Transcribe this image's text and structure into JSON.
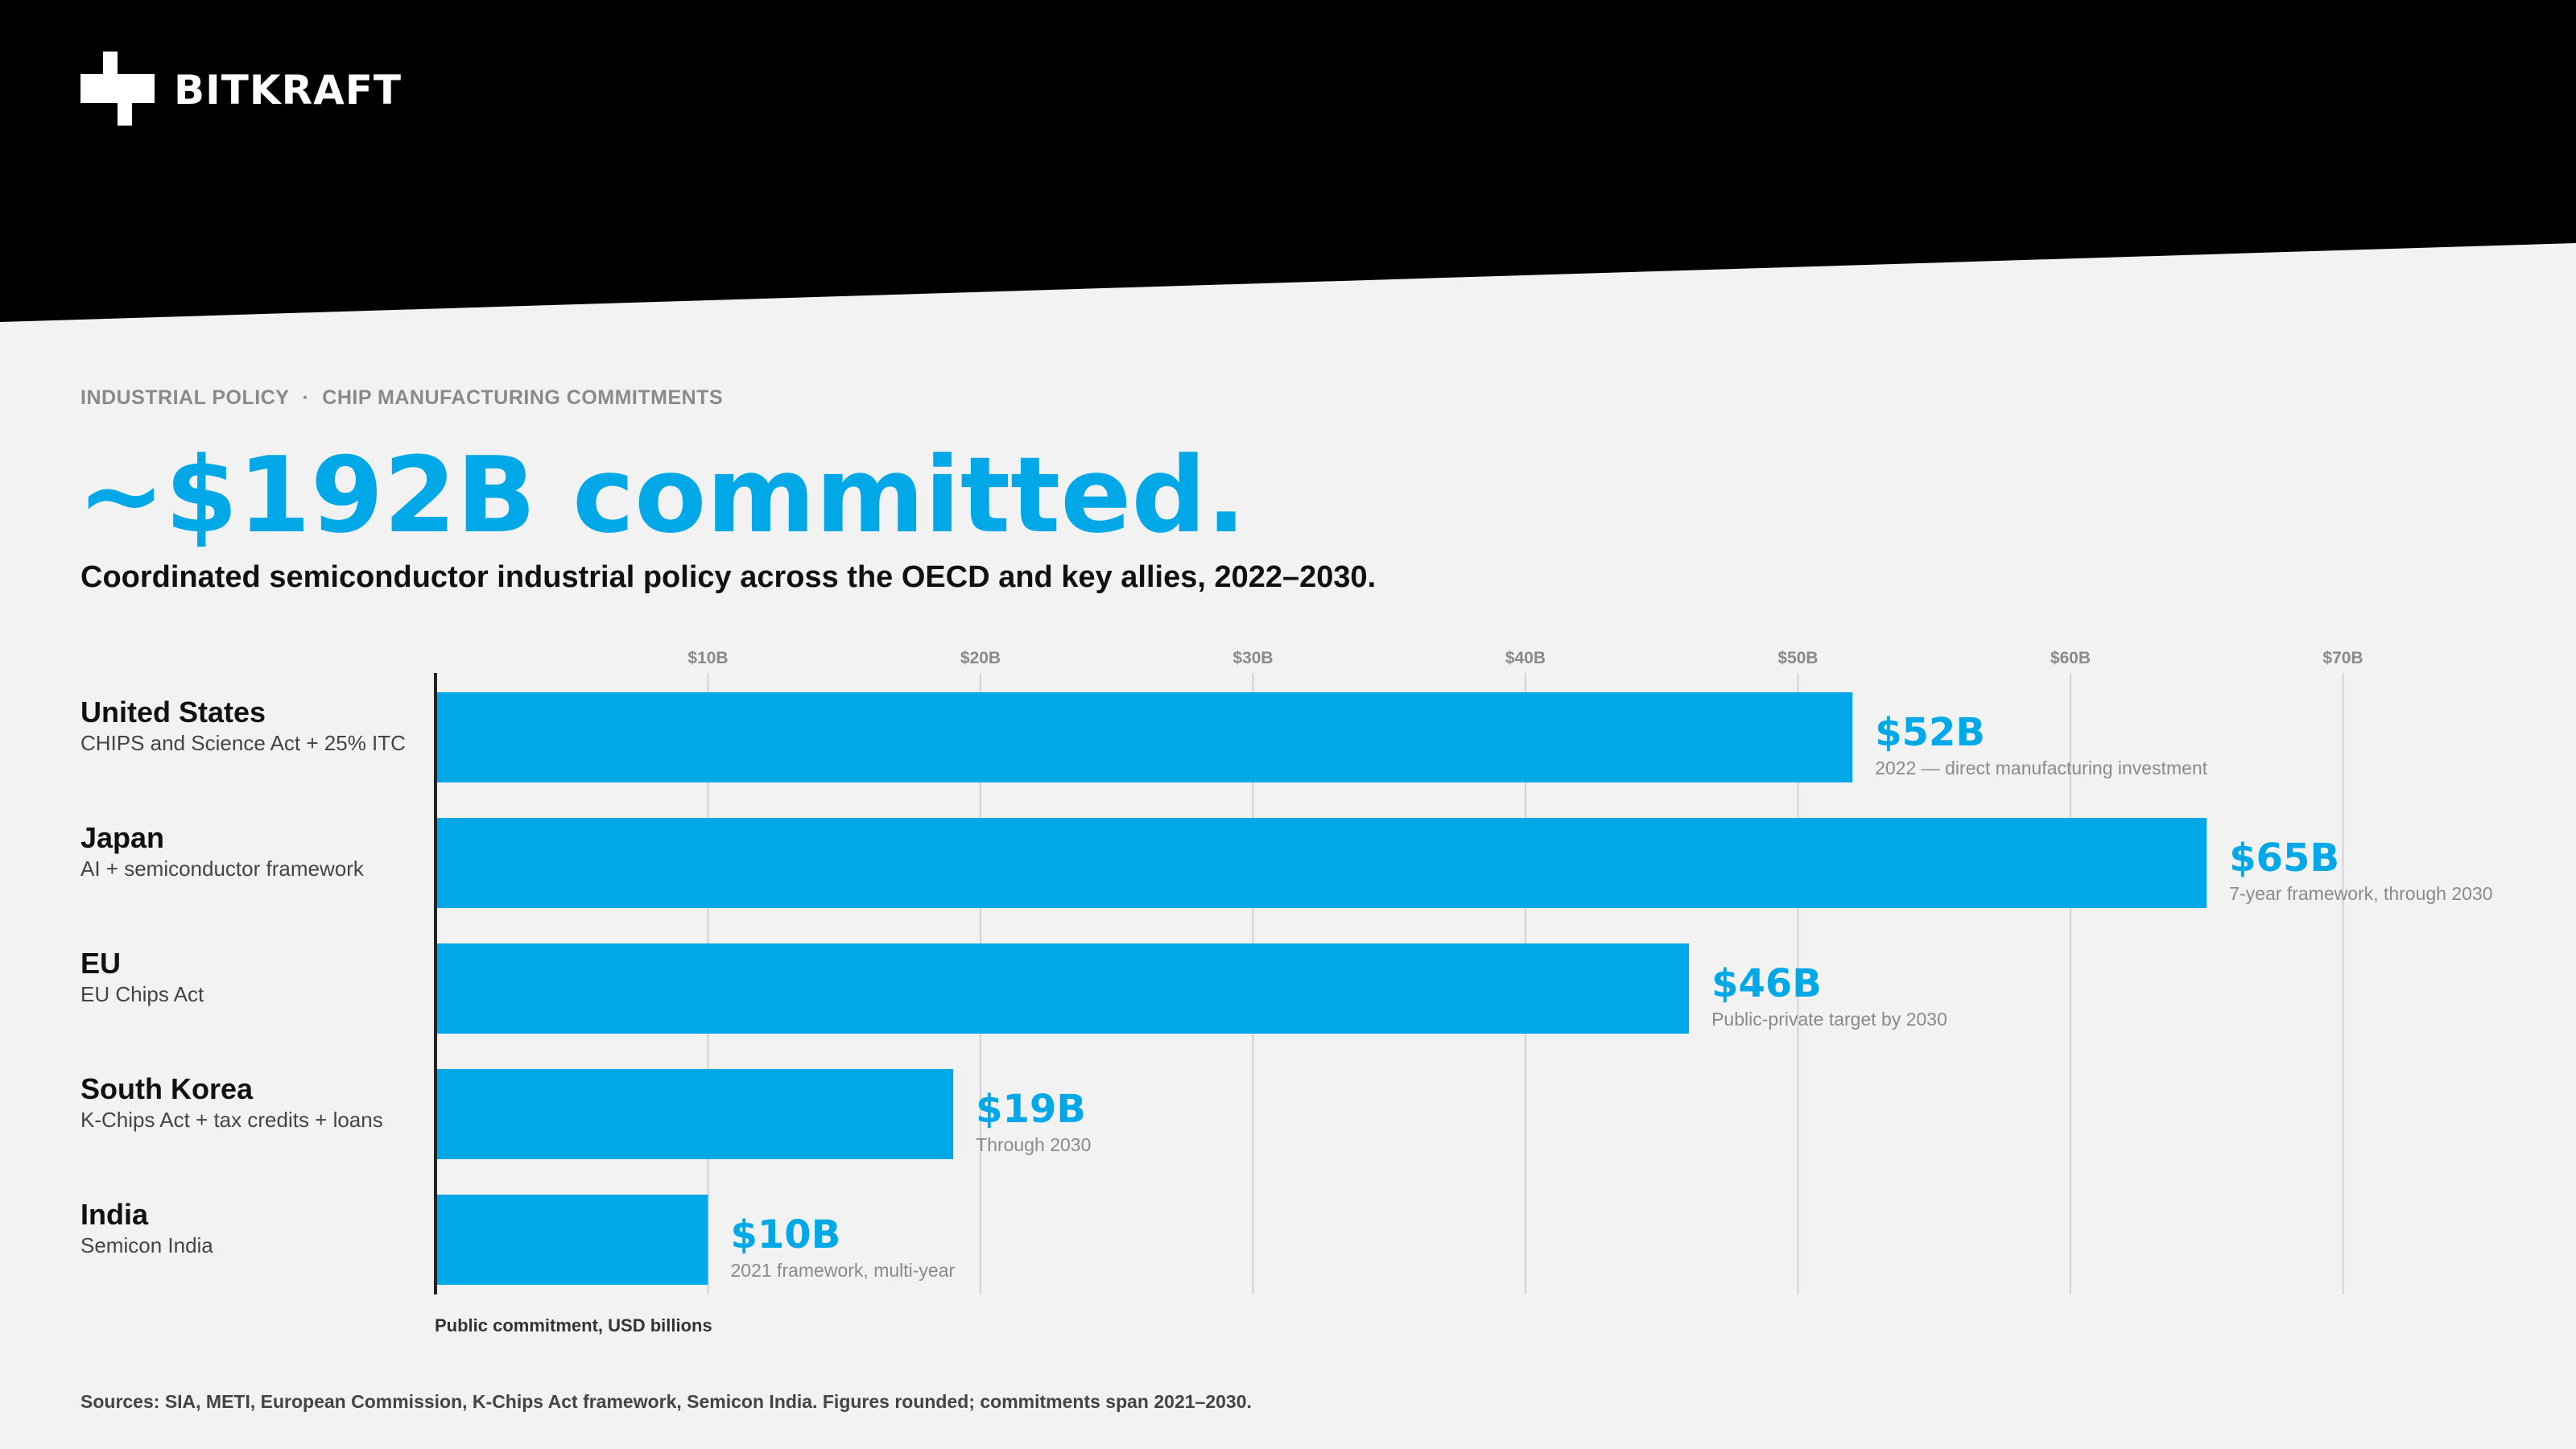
{
  "brand": {
    "name": "BITKRAFT",
    "logo_icon": "bitkraft-logo-icon"
  },
  "eyebrow": {
    "left": "INDUSTRIAL POLICY",
    "separator": "·",
    "right": "CHIP MANUFACTURING COMMITMENTS"
  },
  "headline": "~$192B committed.",
  "subtitle": "Coordinated semiconductor industrial policy across the OECD and key allies, 2022–2030.",
  "colors": {
    "accent": "#00a8e8",
    "banner": "#000000",
    "background": "#f2f2f2"
  },
  "chart_data": {
    "type": "bar",
    "orientation": "horizontal",
    "categories": [
      "United States",
      "Japan",
      "EU",
      "South Korea",
      "India"
    ],
    "descriptions": [
      "CHIPS and Science Act + 25% ITC",
      "AI + semiconductor framework",
      "EU Chips Act",
      "K-Chips Act + tax credits + loans",
      "Semicon India"
    ],
    "values": [
      52,
      65,
      46,
      19,
      10
    ],
    "value_labels": [
      "$52B",
      "$65B",
      "$46B",
      "$19B",
      "$10B"
    ],
    "notes": [
      "2022 — direct manufacturing investment",
      "7-year framework, through 2030",
      "Public-private target by 2030",
      "Through 2030",
      "2021 framework, multi-year"
    ],
    "xlim": [
      0,
      70
    ],
    "x_ticks": [
      10,
      20,
      30,
      40,
      50,
      60,
      70
    ],
    "x_tick_labels": [
      "$10B",
      "$20B",
      "$30B",
      "$40B",
      "$50B",
      "$60B",
      "$70B"
    ],
    "tick_position": "top",
    "xlabel": "Public commitment, USD billions",
    "ylabel": "",
    "grid": true,
    "legend": "none"
  },
  "sources": "Sources: SIA, METI, European Commission, K-Chips Act framework, Semicon India.  Figures rounded; commitments span 2021–2030."
}
